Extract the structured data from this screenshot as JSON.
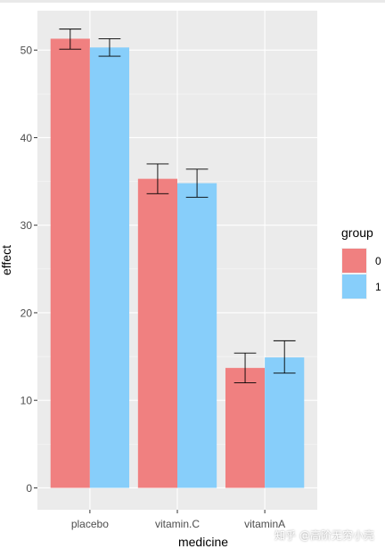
{
  "chart_data": {
    "type": "bar",
    "title": "",
    "xlabel": "medicine",
    "ylabel": "effect",
    "categories": [
      "placebo",
      "vitamin.C",
      "vitaminA"
    ],
    "ylim": [
      -2.5,
      54.5
    ],
    "yticks": [
      0,
      10,
      20,
      30,
      40,
      50
    ],
    "grid": true,
    "legend": {
      "title": "group",
      "position": "right",
      "entries": [
        "0",
        "1"
      ]
    },
    "series": [
      {
        "name": "0",
        "color": "#f08080",
        "values": [
          51.3,
          35.3,
          13.7
        ],
        "err_low": [
          50.1,
          33.6,
          12.0
        ],
        "err_high": [
          52.4,
          37.0,
          15.4
        ]
      },
      {
        "name": "1",
        "color": "#87cefa",
        "values": [
          50.3,
          34.8,
          14.9
        ],
        "err_low": [
          49.3,
          33.2,
          13.1
        ],
        "err_high": [
          51.3,
          36.4,
          16.8
        ]
      }
    ]
  },
  "watermark": "知乎 @高阶无穷小亮"
}
